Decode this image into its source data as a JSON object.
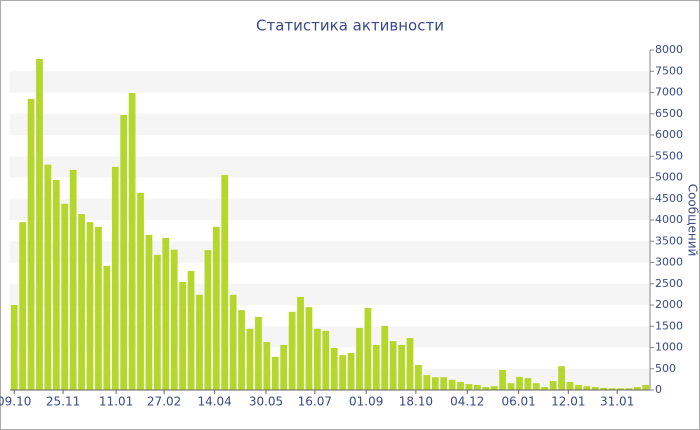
{
  "chart_data": {
    "type": "bar",
    "title": "Статистика активности",
    "y_label": "Сообщений",
    "x": [
      0,
      1,
      2,
      3,
      4,
      5,
      6,
      7,
      8,
      9,
      10,
      11,
      12,
      13,
      14,
      15,
      16,
      17,
      18,
      19,
      20,
      21,
      22,
      23,
      24,
      25,
      26,
      27,
      28,
      29,
      30,
      31,
      32,
      33,
      34,
      35,
      36,
      37,
      38,
      39,
      40,
      41,
      42,
      43,
      44,
      45,
      46,
      47,
      48,
      49,
      50,
      51,
      52,
      53,
      54,
      55,
      56,
      57,
      58,
      59,
      60,
      61,
      62,
      63,
      64,
      65,
      66,
      67,
      68,
      69,
      70,
      71,
      72,
      73,
      74,
      75
    ],
    "values": [
      2000,
      3950,
      6850,
      7790,
      5300,
      4940,
      4380,
      5180,
      4140,
      3950,
      3840,
      2920,
      5250,
      6470,
      6990,
      4640,
      3650,
      3180,
      3580,
      3300,
      2540,
      2800,
      2240,
      3290,
      3840,
      5060,
      2240,
      1880,
      1440,
      1720,
      1130,
      780,
      1060,
      1840,
      2190,
      1950,
      1440,
      1390,
      990,
      820,
      870,
      1460,
      1930,
      1060,
      1510,
      1150,
      1060,
      1220,
      590,
      350,
      300,
      300,
      240,
      190,
      140,
      120,
      70,
      90,
      470,
      160,
      310,
      280,
      160,
      70,
      210,
      560,
      190,
      120,
      90,
      70,
      50,
      40,
      40,
      40,
      70,
      120
    ],
    "color": "#b5d62a",
    "xlim": [
      -0.5,
      75.5
    ],
    "xticks": [
      {
        "value": 0,
        "label": "09.10"
      },
      {
        "value": 5.8,
        "label": "25.11"
      },
      {
        "value": 12.1,
        "label": "11.01"
      },
      {
        "value": 17.8,
        "label": "27.02"
      },
      {
        "value": 23.8,
        "label": "14.04"
      },
      {
        "value": 29.9,
        "label": "30.05"
      },
      {
        "value": 35.7,
        "label": "16.07"
      },
      {
        "value": 41.8,
        "label": "01.09"
      },
      {
        "value": 47.7,
        "label": "18.10"
      },
      {
        "value": 53.8,
        "label": "04.12"
      },
      {
        "value": 59.9,
        "label": "06.01"
      },
      {
        "value": 65.8,
        "label": "12.01"
      },
      {
        "value": 71.6,
        "label": "31.01"
      }
    ],
    "ylim": [
      0,
      8000
    ],
    "yticks": [
      0,
      500,
      1000,
      1500,
      2000,
      2500,
      3000,
      3500,
      4000,
      4500,
      5000,
      5500,
      6000,
      6500,
      7000,
      7500,
      8000
    ],
    "grid": "bands"
  }
}
